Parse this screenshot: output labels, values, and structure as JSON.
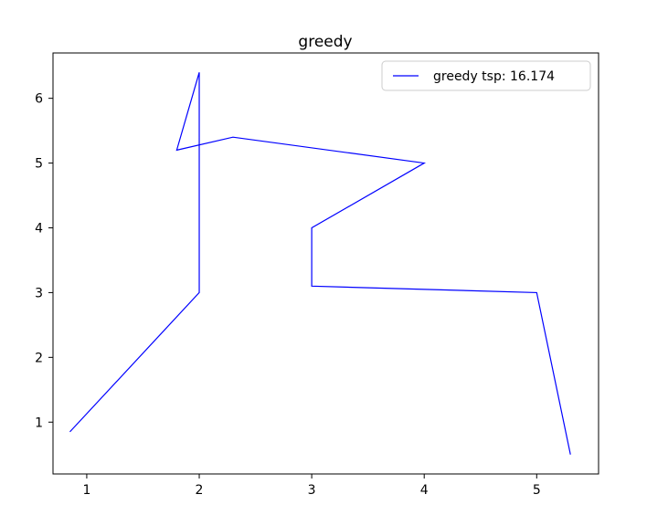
{
  "chart_data": {
    "type": "line",
    "title": "greedy",
    "xlabel": "",
    "ylabel": "",
    "xlim": [
      0.7,
      5.55
    ],
    "ylim": [
      0.2,
      6.7
    ],
    "xticks": [
      1,
      2,
      3,
      4,
      5
    ],
    "yticks": [
      1,
      2,
      3,
      4,
      5,
      6
    ],
    "grid": false,
    "legend_position": "top-right",
    "series": [
      {
        "name": "greedy tsp: 16.174",
        "color": "#0000ff",
        "x": [
          0.85,
          2.0,
          2.0,
          1.8,
          2.3,
          4.0,
          3.0,
          3.0,
          5.0,
          5.3
        ],
        "y": [
          0.85,
          3.0,
          6.4,
          5.2,
          5.4,
          5.0,
          4.0,
          3.1,
          3.0,
          0.5
        ]
      }
    ]
  }
}
